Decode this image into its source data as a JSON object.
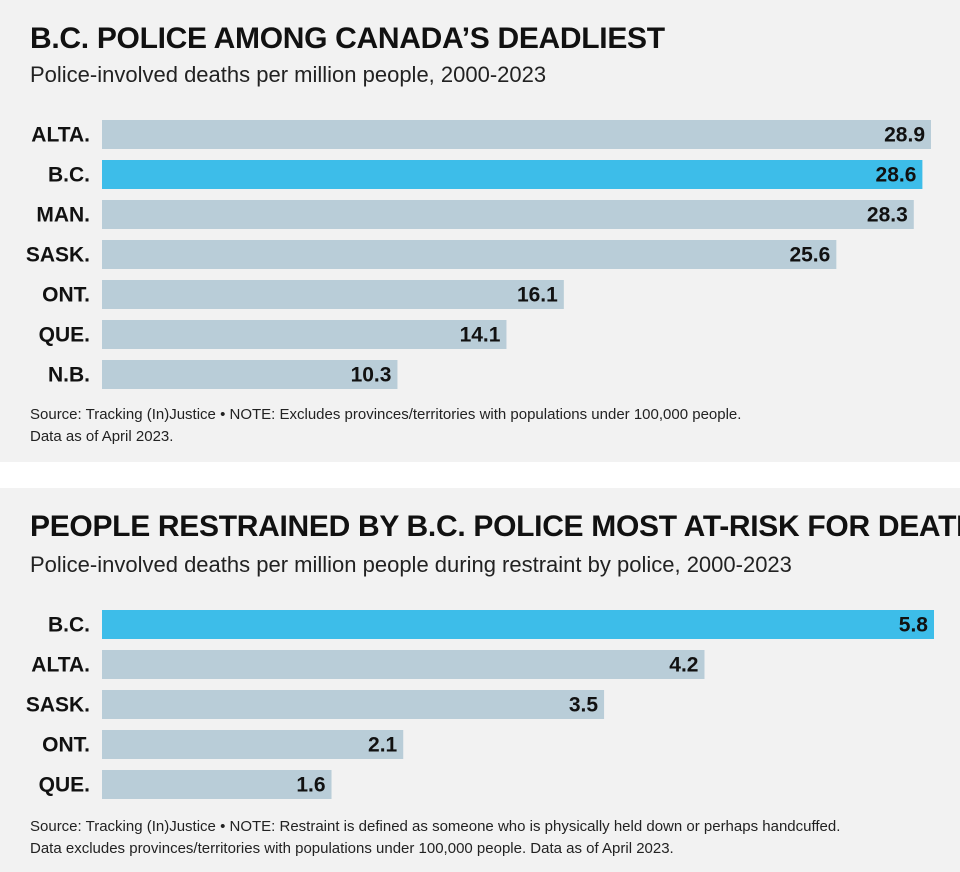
{
  "charts": {
    "first": {
      "title": "B.C. POLICE AMONG CANADA’S DEADLIEST",
      "subtitle": "Police-involved deaths per million people, 2000-2023",
      "note_line1": "Source: Tracking (In)Justice • NOTE: Excludes provinces/territories with populations under 100,000 people.",
      "note_line2": "Data as of April 2023."
    },
    "second": {
      "title": "PEOPLE RESTRAINED BY B.C. POLICE MOST AT-RISK FOR DEATH",
      "subtitle": "Police-involved deaths per million people during restraint by police, 2000-2023",
      "note_line1": "Source: Tracking (In)Justice • NOTE: Restraint is defined as someone who is physically held down or perhaps handcuffed.",
      "note_line2": "Data excludes provinces/territories with populations under 100,000 people. Data as of April 2023."
    }
  },
  "colors": {
    "highlight": "#3dbde9",
    "bar": "#b9cdd8",
    "panel_background": "#f2f2f2"
  },
  "chart_data": [
    {
      "type": "bar",
      "orientation": "horizontal",
      "title": "B.C. POLICE AMONG CANADA’S DEADLIEST",
      "subtitle": "Police-involved deaths per million people, 2000-2023",
      "categories": [
        "ALTA.",
        "B.C.",
        "MAN.",
        "SASK.",
        "ONT.",
        "QUE.",
        "N.B."
      ],
      "values": [
        28.9,
        28.6,
        28.3,
        25.6,
        16.1,
        14.1,
        10.3
      ],
      "highlight": "B.C.",
      "xlim": [
        0,
        28.9
      ],
      "grid": false,
      "legend": false
    },
    {
      "type": "bar",
      "orientation": "horizontal",
      "title": "PEOPLE RESTRAINED BY B.C. POLICE MOST AT-RISK FOR DEATH",
      "subtitle": "Police-involved deaths per million people during restraint by police, 2000-2023",
      "categories": [
        "B.C.",
        "ALTA.",
        "SASK.",
        "ONT.",
        "QUE."
      ],
      "values": [
        5.8,
        4.2,
        3.5,
        2.1,
        1.6
      ],
      "highlight": "B.C.",
      "xlim": [
        0,
        5.8
      ],
      "grid": false,
      "legend": false
    }
  ]
}
